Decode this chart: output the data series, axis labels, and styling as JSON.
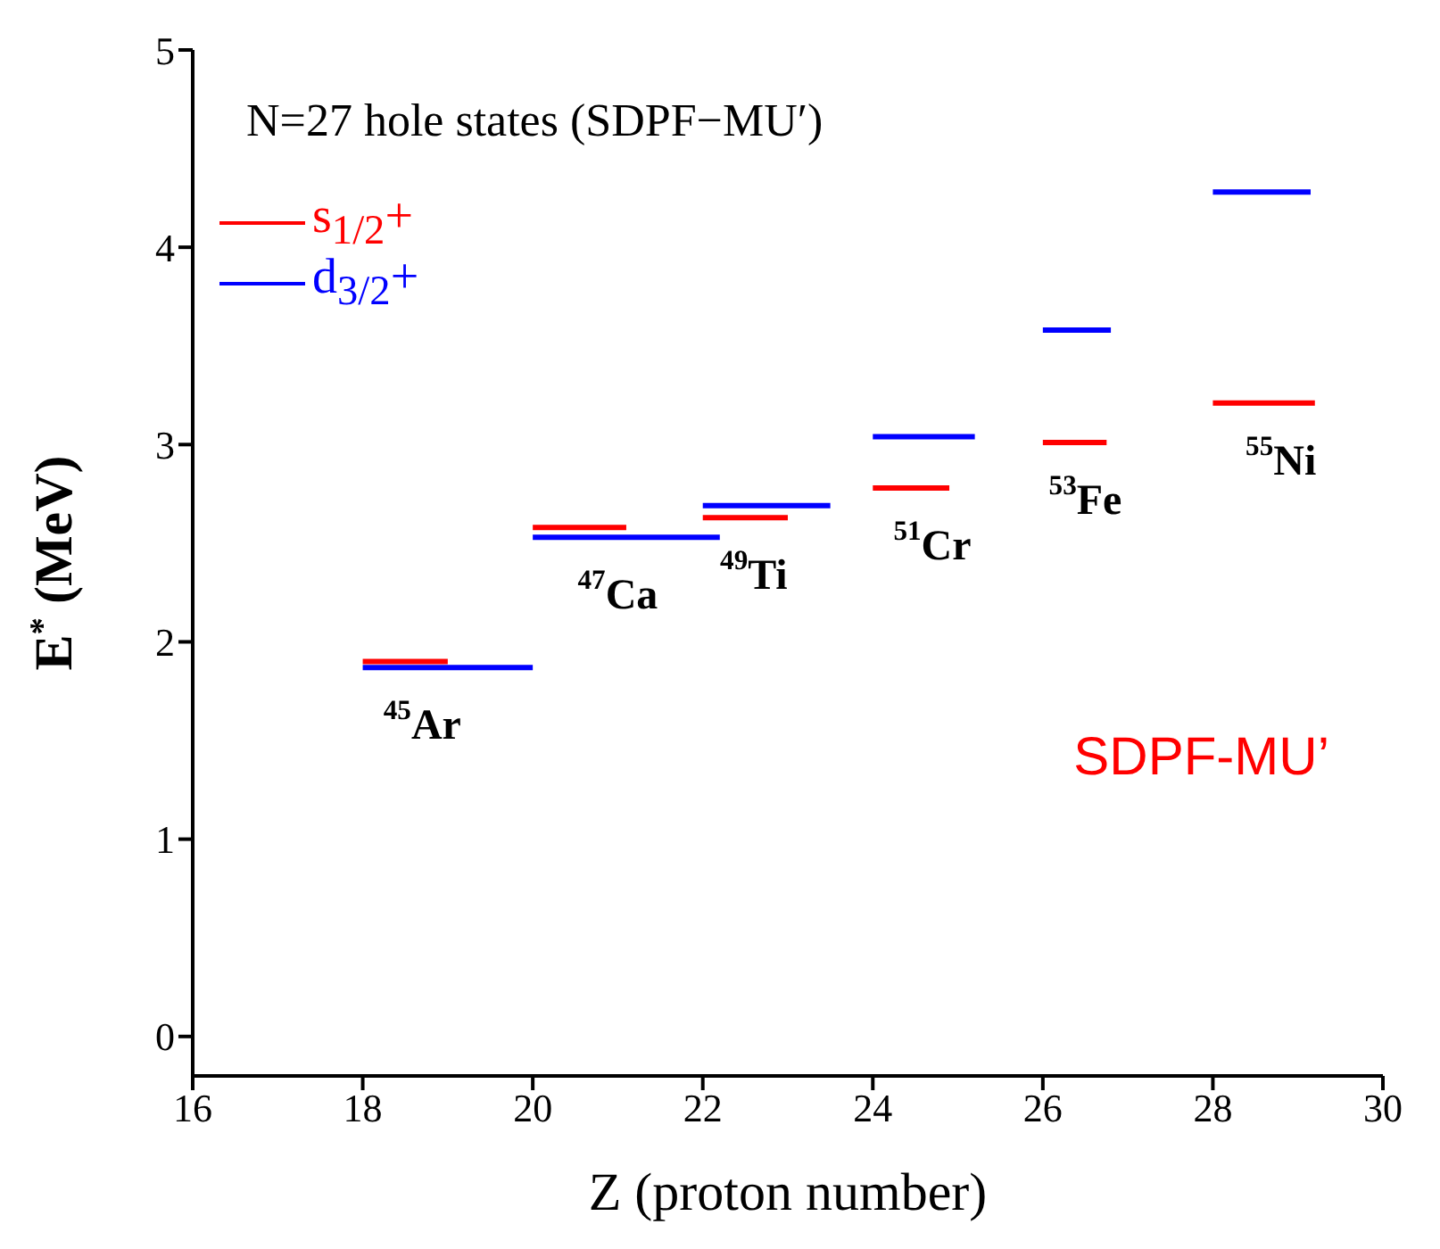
{
  "chart_data": {
    "type": "line",
    "xlabel": "Z (proton number)",
    "ylabel": "E$^{*}$ (MeV)",
    "xlim": [
      16,
      30
    ],
    "ylim": [
      -0.2,
      5
    ],
    "xticks": [
      16,
      18,
      20,
      22,
      24,
      26,
      28,
      30
    ],
    "yticks": [
      0,
      1,
      2,
      3,
      4,
      5
    ],
    "marker": "none",
    "line_style": "solid",
    "grid": false,
    "legend": "top left",
    "series": [
      {
        "name": "s$_{1/2}$+",
        "color": "#ff0000",
        "x": [
          18,
          19
        ],
        "values": [
          1.9,
          1.9
        ]
      },
      {
        "color": "#ff0000",
        "x": [
          20,
          21.1
        ],
        "values": [
          2.58,
          2.58
        ]
      },
      {
        "color": "#ff0000",
        "x": [
          22,
          23
        ],
        "values": [
          2.63,
          2.63
        ]
      },
      {
        "color": "#ff0000",
        "x": [
          24,
          24.9
        ],
        "values": [
          2.78,
          2.78
        ]
      },
      {
        "color": "#ff0000",
        "x": [
          26,
          26.75
        ],
        "values": [
          3.01,
          3.01
        ]
      },
      {
        "color": "#ff0000",
        "x": [
          28,
          29.2
        ],
        "values": [
          3.21,
          3.21
        ]
      },
      {
        "name": "d$_{3/2}$+",
        "color": "#0000ff",
        "x": [
          18,
          20
        ],
        "values": [
          1.87,
          1.87
        ]
      },
      {
        "color": "#0000ff",
        "x": [
          20,
          22.2
        ],
        "values": [
          2.53,
          2.53
        ]
      },
      {
        "color": "#0000ff",
        "x": [
          22,
          23.5
        ],
        "values": [
          2.69,
          2.69
        ]
      },
      {
        "color": "#0000ff",
        "x": [
          24,
          25.2
        ],
        "values": [
          3.04,
          3.04
        ]
      },
      {
        "color": "#0000ff",
        "x": [
          26,
          26.8
        ],
        "values": [
          3.58,
          3.58
        ]
      },
      {
        "color": "#0000ff",
        "x": [
          28,
          29.15
        ],
        "values": [
          4.28,
          4.28
        ]
      }
    ],
    "annotations": [
      "N=27 hole states (SDPF−MU′)",
      "SDPF-MU’",
      {
        "text": "$^{45}$Ar",
        "x": 18.7,
        "y": 1.87
      },
      {
        "text": "$^{47}$Ca",
        "x": 21,
        "y": 2.53
      },
      {
        "text": "$^{49}$Ti",
        "x": 22.6,
        "y": 2.63
      },
      {
        "text": "$^{51}$Cr",
        "x": 24.7,
        "y": 2.78
      },
      {
        "text": "$^{53}$Fe",
        "x": 26.5,
        "y": 3.01
      },
      {
        "text": "$^{55}$Ni",
        "x": 28.8,
        "y": 3.21
      }
    ]
  }
}
